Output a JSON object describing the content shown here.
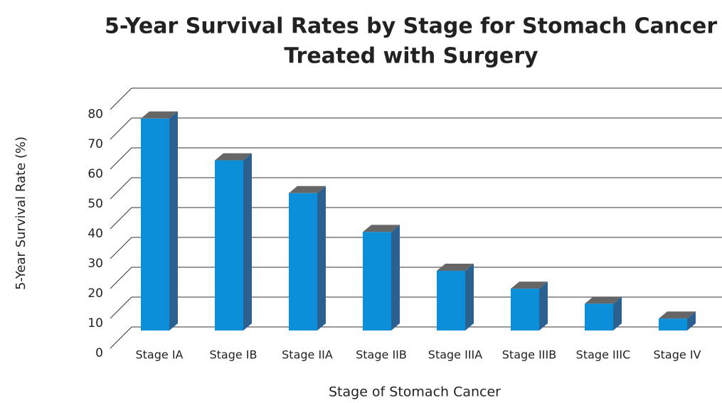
{
  "chart_data": {
    "type": "bar3d",
    "title": [
      "5-Year Survival Rates by Stage for Stomach Cancer",
      "Treated with Surgery"
    ],
    "x_label": "Stage of Stomach Cancer",
    "y_label": "5-Year Survival Rate (%)",
    "categories": [
      "Stage IA",
      "Stage IB",
      "Stage IIA",
      "Stage IIB",
      "Stage IIIA",
      "Stage IIIB",
      "Stage IIIC",
      "Stage IV"
    ],
    "values": [
      71,
      57,
      46,
      33,
      20,
      14,
      9,
      4
    ],
    "color": "#0a8fd8",
    "side_color": "#2a6190",
    "top_color": "#666666",
    "ylim": [
      0,
      80
    ],
    "yticks": [
      0,
      10,
      20,
      30,
      40,
      50,
      60,
      70,
      80
    ],
    "grid": true
  }
}
